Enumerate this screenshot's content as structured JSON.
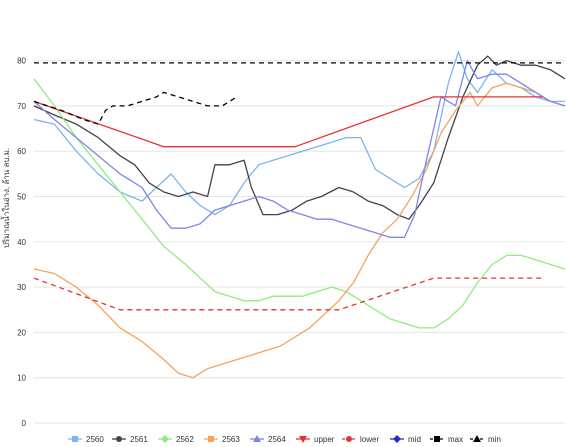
{
  "chart_data": {
    "type": "line",
    "ylabel": "ปริมาณน้ำในอ่าง, ล้าน ลบ.ม.",
    "ylim": [
      0,
      85
    ],
    "yticks": [
      0,
      10,
      20,
      30,
      40,
      50,
      60,
      70,
      80
    ],
    "xrange": [
      1,
      365
    ],
    "grid": true,
    "legend_position": "bottom",
    "series": [
      {
        "name": "2560",
        "color": "#7cb5ec",
        "marker": "square",
        "dash": "solid",
        "points": [
          [
            1,
            67
          ],
          [
            15,
            66
          ],
          [
            30,
            60
          ],
          [
            45,
            55
          ],
          [
            60,
            51
          ],
          [
            75,
            49
          ],
          [
            85,
            52
          ],
          [
            95,
            55
          ],
          [
            105,
            51
          ],
          [
            115,
            48
          ],
          [
            125,
            46
          ],
          [
            135,
            48
          ],
          [
            145,
            53
          ],
          [
            155,
            57
          ],
          [
            165,
            58
          ],
          [
            175,
            59
          ],
          [
            185,
            60
          ],
          [
            195,
            61
          ],
          [
            205,
            62
          ],
          [
            215,
            63
          ],
          [
            225,
            63
          ],
          [
            235,
            56
          ],
          [
            245,
            54
          ],
          [
            255,
            52
          ],
          [
            265,
            54
          ],
          [
            275,
            60
          ],
          [
            285,
            75
          ],
          [
            292,
            82
          ],
          [
            298,
            76
          ],
          [
            305,
            73
          ],
          [
            315,
            78
          ],
          [
            325,
            75
          ],
          [
            335,
            74
          ],
          [
            345,
            72
          ],
          [
            355,
            71
          ],
          [
            365,
            71
          ]
        ]
      },
      {
        "name": "2561",
        "color": "#434348",
        "marker": "circle",
        "dash": "solid",
        "points": [
          [
            1,
            70
          ],
          [
            15,
            68
          ],
          [
            30,
            66
          ],
          [
            45,
            63
          ],
          [
            60,
            59
          ],
          [
            70,
            57
          ],
          [
            80,
            53
          ],
          [
            90,
            51
          ],
          [
            100,
            50
          ],
          [
            110,
            51
          ],
          [
            120,
            50
          ],
          [
            125,
            57
          ],
          [
            135,
            57
          ],
          [
            145,
            58
          ],
          [
            150,
            52
          ],
          [
            158,
            46
          ],
          [
            168,
            46
          ],
          [
            178,
            47
          ],
          [
            188,
            49
          ],
          [
            198,
            50
          ],
          [
            210,
            52
          ],
          [
            220,
            51
          ],
          [
            230,
            49
          ],
          [
            240,
            48
          ],
          [
            250,
            46
          ],
          [
            258,
            45
          ],
          [
            265,
            48
          ],
          [
            275,
            53
          ],
          [
            285,
            63
          ],
          [
            295,
            72
          ],
          [
            305,
            79
          ],
          [
            312,
            81
          ],
          [
            318,
            79
          ],
          [
            325,
            80
          ],
          [
            335,
            79
          ],
          [
            345,
            79
          ],
          [
            355,
            78
          ],
          [
            365,
            76
          ]
        ]
      },
      {
        "name": "2562",
        "color": "#90ed7d",
        "marker": "diamond",
        "dash": "solid",
        "points": [
          [
            1,
            76
          ],
          [
            15,
            70
          ],
          [
            30,
            63
          ],
          [
            45,
            57
          ],
          [
            60,
            51
          ],
          [
            75,
            45
          ],
          [
            90,
            39
          ],
          [
            105,
            35
          ],
          [
            115,
            32
          ],
          [
            125,
            29
          ],
          [
            135,
            28
          ],
          [
            145,
            27
          ],
          [
            155,
            27
          ],
          [
            165,
            28
          ],
          [
            175,
            28
          ],
          [
            185,
            28
          ],
          [
            195,
            29
          ],
          [
            205,
            30
          ],
          [
            215,
            29
          ],
          [
            225,
            27
          ],
          [
            235,
            25
          ],
          [
            245,
            23
          ],
          [
            255,
            22
          ],
          [
            265,
            21
          ],
          [
            275,
            21
          ],
          [
            285,
            23
          ],
          [
            295,
            26
          ],
          [
            305,
            31
          ],
          [
            315,
            35
          ],
          [
            325,
            37
          ],
          [
            335,
            37
          ],
          [
            345,
            36
          ],
          [
            355,
            35
          ],
          [
            365,
            34
          ]
        ]
      },
      {
        "name": "2563",
        "color": "#f7a35c",
        "marker": "square",
        "dash": "solid",
        "points": [
          [
            1,
            34
          ],
          [
            15,
            33
          ],
          [
            30,
            30
          ],
          [
            45,
            26
          ],
          [
            60,
            21
          ],
          [
            75,
            18
          ],
          [
            90,
            14
          ],
          [
            100,
            11
          ],
          [
            110,
            10
          ],
          [
            120,
            12
          ],
          [
            130,
            13
          ],
          [
            140,
            14
          ],
          [
            150,
            15
          ],
          [
            160,
            16
          ],
          [
            170,
            17
          ],
          [
            180,
            19
          ],
          [
            190,
            21
          ],
          [
            200,
            24
          ],
          [
            210,
            27
          ],
          [
            220,
            31
          ],
          [
            230,
            37
          ],
          [
            240,
            42
          ],
          [
            250,
            45
          ],
          [
            260,
            50
          ],
          [
            270,
            56
          ],
          [
            280,
            64
          ],
          [
            290,
            69
          ],
          [
            300,
            73
          ],
          [
            305,
            70
          ],
          [
            315,
            74
          ],
          [
            325,
            75
          ],
          [
            335,
            74
          ],
          [
            345,
            73
          ],
          [
            355,
            71
          ],
          [
            365,
            70
          ]
        ]
      },
      {
        "name": "2564",
        "color": "#8085e9",
        "marker": "triangle",
        "dash": "solid",
        "points": [
          [
            1,
            71
          ],
          [
            15,
            67
          ],
          [
            30,
            63
          ],
          [
            45,
            59
          ],
          [
            60,
            55
          ],
          [
            75,
            52
          ],
          [
            85,
            47
          ],
          [
            95,
            43
          ],
          [
            105,
            43
          ],
          [
            115,
            44
          ],
          [
            125,
            47
          ],
          [
            135,
            48
          ],
          [
            145,
            49
          ],
          [
            155,
            50
          ],
          [
            165,
            49
          ],
          [
            175,
            47
          ],
          [
            185,
            46
          ],
          [
            195,
            45
          ],
          [
            205,
            45
          ],
          [
            215,
            44
          ],
          [
            225,
            43
          ],
          [
            235,
            42
          ],
          [
            245,
            41
          ],
          [
            255,
            41
          ],
          [
            262,
            46
          ],
          [
            270,
            58
          ],
          [
            280,
            72
          ],
          [
            290,
            70
          ],
          [
            298,
            80
          ],
          [
            305,
            76
          ],
          [
            315,
            77
          ],
          [
            325,
            77
          ],
          [
            335,
            75
          ],
          [
            345,
            73
          ],
          [
            355,
            71
          ],
          [
            365,
            70
          ]
        ]
      },
      {
        "name": "upper",
        "color": "#e53333",
        "marker": "triangle-down",
        "dash": "solid",
        "points": [
          [
            1,
            71
          ],
          [
            90,
            61
          ],
          [
            180,
            61
          ],
          [
            275,
            72
          ],
          [
            300,
            72
          ],
          [
            350,
            72
          ]
        ]
      },
      {
        "name": "lower",
        "color": "#e53333",
        "marker": "circle",
        "dash": "dashed",
        "points": [
          [
            1,
            32
          ],
          [
            60,
            25
          ],
          [
            210,
            25
          ],
          [
            275,
            32
          ],
          [
            300,
            32
          ],
          [
            350,
            32
          ]
        ]
      },
      {
        "name": "mid",
        "color": "#1f2bd1",
        "marker": "diamond",
        "dash": "solid",
        "points": []
      },
      {
        "name": "max",
        "color": "#000000",
        "marker": "square",
        "dash": "dashed",
        "points": [
          [
            1,
            79.5
          ],
          [
            365,
            79.5
          ]
        ]
      },
      {
        "name": "min",
        "color": "#000000",
        "marker": "triangle",
        "dash": "dashed",
        "points": [
          [
            1,
            71
          ],
          [
            20,
            69
          ],
          [
            35,
            67
          ],
          [
            45,
            66
          ],
          [
            50,
            69
          ],
          [
            55,
            70
          ],
          [
            65,
            70
          ],
          [
            75,
            71
          ],
          [
            85,
            72
          ],
          [
            90,
            73
          ],
          [
            100,
            72
          ],
          [
            110,
            71
          ],
          [
            120,
            70
          ],
          [
            130,
            70
          ],
          [
            135,
            71
          ],
          [
            140,
            72
          ]
        ]
      }
    ]
  }
}
